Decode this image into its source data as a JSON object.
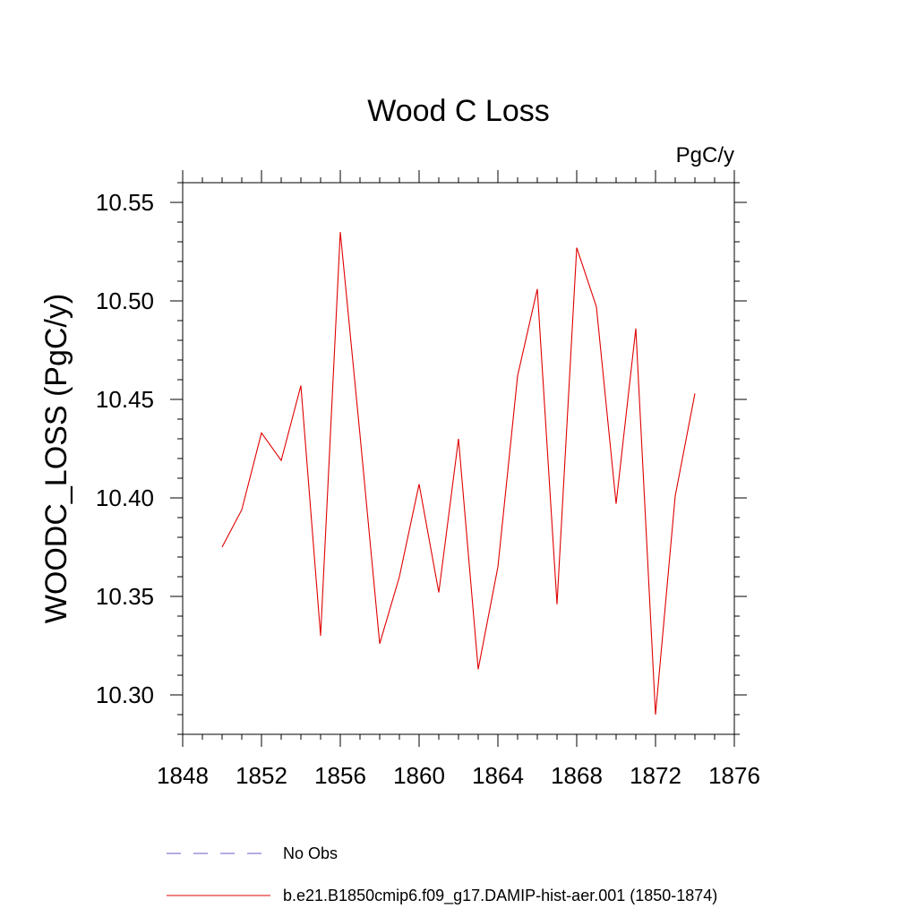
{
  "chart_data": {
    "type": "line",
    "title": "Wood C Loss",
    "units_label": "PgC/y",
    "ylabel": "WOODC_LOSS  (PgC/y)",
    "xlabel": "",
    "xlim": [
      1848,
      1876
    ],
    "ylim": [
      10.28,
      10.56
    ],
    "x_ticks": [
      1848,
      1852,
      1856,
      1860,
      1864,
      1868,
      1872,
      1876
    ],
    "x_tick_labels": [
      "1848",
      "1852",
      "1856",
      "1860",
      "1864",
      "1868",
      "1872",
      "1876"
    ],
    "y_ticks": [
      10.3,
      10.35,
      10.4,
      10.45,
      10.5,
      10.55
    ],
    "y_tick_labels": [
      "10.30",
      "10.35",
      "10.40",
      "10.45",
      "10.50",
      "10.55"
    ],
    "grid": false,
    "legend_placement": "bottom",
    "series": [
      {
        "name": "b.e21.B1850cmip6.f09_g17.DAMIP-hist-aer.001 (1850-1874)",
        "color": "#e00000",
        "style": "solid",
        "x": [
          1850,
          1851,
          1852,
          1853,
          1854,
          1855,
          1856,
          1857,
          1858,
          1859,
          1860,
          1861,
          1862,
          1863,
          1864,
          1865,
          1866,
          1867,
          1868,
          1869,
          1870,
          1871,
          1872,
          1873,
          1874
        ],
        "y": [
          10.375,
          10.394,
          10.433,
          10.419,
          10.457,
          10.33,
          10.535,
          10.432,
          10.326,
          10.36,
          10.407,
          10.352,
          10.43,
          10.313,
          10.365,
          10.462,
          10.506,
          10.346,
          10.527,
          10.497,
          10.397,
          10.486,
          10.29,
          10.401,
          10.453
        ]
      }
    ],
    "legend": [
      {
        "label": "No Obs",
        "color": "#6a5acd",
        "style": "dashed"
      },
      {
        "label": "b.e21.B1850cmip6.f09_g17.DAMIP-hist-aer.001 (1850-1874)",
        "color": "#e00000",
        "style": "solid"
      }
    ]
  }
}
